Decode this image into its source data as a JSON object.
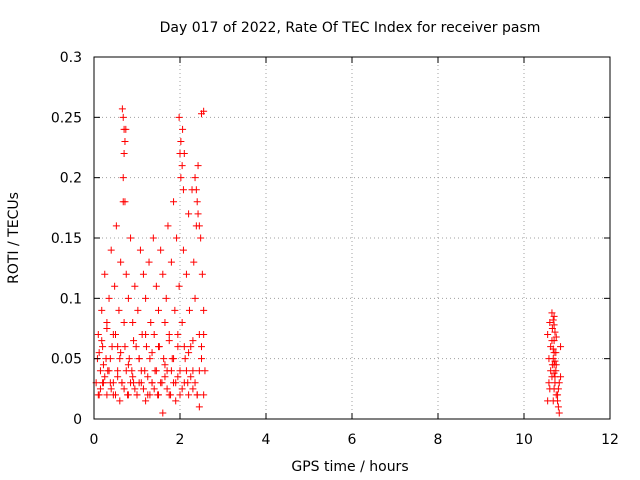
{
  "chart_data": {
    "type": "scatter",
    "title": "Day 017 of 2022, Rate Of TEC Index for receiver pasm",
    "xlabel": "GPS time / hours",
    "ylabel": "ROTI / TECUs",
    "xlim": [
      0,
      12
    ],
    "ylim": [
      0,
      0.3
    ],
    "x_ticks": [
      0,
      2,
      4,
      6,
      8,
      10,
      12
    ],
    "y_ticks": [
      0,
      0.05,
      0.1,
      0.15,
      0.2,
      0.25,
      0.3
    ],
    "x_tick_labels": [
      "0",
      "2",
      "4",
      "6",
      "8",
      "10",
      "12"
    ],
    "y_tick_labels": [
      "0",
      "0.05",
      "0.1",
      "0.15",
      "0.2",
      "0.25",
      "0.3"
    ],
    "grid": true,
    "marker": "+",
    "color": "#ff0000",
    "series": [
      {
        "name": "ROTI",
        "x": [
          0.05,
          0.08,
          0.1,
          0.12,
          0.15,
          0.18,
          0.2,
          0.22,
          0.25,
          0.28,
          0.3,
          0.32,
          0.35,
          0.38,
          0.4,
          0.42,
          0.45,
          0.48,
          0.5,
          0.52,
          0.55,
          0.58,
          0.6,
          0.62,
          0.65,
          0.68,
          0.7,
          0.72,
          0.75,
          0.78,
          0.8,
          0.82,
          0.85,
          0.88,
          0.9,
          0.92,
          0.95,
          0.98,
          1.0,
          1.02,
          1.05,
          1.08,
          1.1,
          1.12,
          1.15,
          1.18,
          1.2,
          1.22,
          1.25,
          1.28,
          1.3,
          1.32,
          1.35,
          1.38,
          1.4,
          1.42,
          1.45,
          1.48,
          1.5,
          1.52,
          1.55,
          1.58,
          1.6,
          1.62,
          1.65,
          1.68,
          1.7,
          1.72,
          1.75,
          1.78,
          1.8,
          1.82,
          1.85,
          1.88,
          1.9,
          1.92,
          1.95,
          1.98,
          2.0,
          2.02,
          2.05,
          2.08,
          2.1,
          2.12,
          2.15,
          2.18,
          2.2,
          2.22,
          2.25,
          2.28,
          2.3,
          2.32,
          2.35,
          2.38,
          2.4,
          2.42,
          2.45,
          2.48,
          2.5,
          2.52,
          2.55,
          2.58,
          0.1,
          0.15,
          0.2,
          0.25,
          0.3,
          0.35,
          0.4,
          0.45,
          0.5,
          0.55,
          0.6,
          0.65,
          0.7,
          0.75,
          0.8,
          0.85,
          0.9,
          0.95,
          1.0,
          1.05,
          1.1,
          1.15,
          1.2,
          1.25,
          1.3,
          1.35,
          1.4,
          1.45,
          1.5,
          1.55,
          1.6,
          1.65,
          1.7,
          1.75,
          1.8,
          1.85,
          1.9,
          1.95,
          2.0,
          2.05,
          2.1,
          2.15,
          2.2,
          2.25,
          2.3,
          2.35,
          2.4,
          2.45,
          2.5,
          2.55,
          0.68,
          0.7,
          0.72,
          0.7,
          0.68,
          0.72,
          0.66,
          0.74,
          2.02,
          2.05,
          2.08,
          2.0,
          1.98,
          2.06,
          2.35,
          2.38,
          2.4,
          2.42,
          2.45,
          2.5,
          2.55,
          0.12,
          0.18,
          0.22,
          0.3,
          0.38,
          0.45,
          0.55,
          0.62,
          0.8,
          0.92,
          1.05,
          1.2,
          1.35,
          1.5,
          1.65,
          1.75,
          1.85,
          1.95,
          2.1,
          2.2,
          2.3,
          2.45,
          2.55,
          10.55,
          10.58,
          10.6,
          10.62,
          10.65,
          10.68,
          10.7,
          10.72,
          10.75,
          10.78,
          10.8,
          10.82,
          10.85,
          10.55,
          10.6,
          10.65,
          10.7,
          10.75,
          10.8,
          10.85,
          10.58,
          10.62,
          10.66,
          10.7,
          10.74,
          10.78,
          10.82,
          10.65,
          10.68,
          10.7,
          10.72,
          10.75,
          10.68,
          10.7,
          10.72,
          10.66,
          10.74,
          10.7,
          10.68,
          10.72,
          10.7
        ],
        "y": [
          0.03,
          0.05,
          0.07,
          0.02,
          0.04,
          0.09,
          0.06,
          0.03,
          0.12,
          0.05,
          0.08,
          0.04,
          0.1,
          0.03,
          0.14,
          0.06,
          0.02,
          0.11,
          0.07,
          0.16,
          0.04,
          0.09,
          0.05,
          0.13,
          0.03,
          0.18,
          0.08,
          0.06,
          0.12,
          0.02,
          0.1,
          0.05,
          0.15,
          0.04,
          0.08,
          0.03,
          0.11,
          0.06,
          0.02,
          0.09,
          0.05,
          0.14,
          0.03,
          0.07,
          0.12,
          0.04,
          0.1,
          0.06,
          0.02,
          0.13,
          0.05,
          0.08,
          0.03,
          0.15,
          0.07,
          0.04,
          0.11,
          0.02,
          0.09,
          0.06,
          0.14,
          0.03,
          0.12,
          0.05,
          0.08,
          0.1,
          0.04,
          0.16,
          0.07,
          0.02,
          0.13,
          0.05,
          0.18,
          0.09,
          0.03,
          0.15,
          0.06,
          0.11,
          0.04,
          0.2,
          0.08,
          0.14,
          0.22,
          0.05,
          0.12,
          0.03,
          0.17,
          0.09,
          0.06,
          0.19,
          0.04,
          0.13,
          0.1,
          0.16,
          0.02,
          0.21,
          0.07,
          0.15,
          0.05,
          0.12,
          0.09,
          0.04,
          0.02,
          0.025,
          0.03,
          0.035,
          0.02,
          0.04,
          0.025,
          0.03,
          0.02,
          0.035,
          0.015,
          0.03,
          0.025,
          0.04,
          0.02,
          0.03,
          0.035,
          0.025,
          0.02,
          0.03,
          0.04,
          0.025,
          0.015,
          0.035,
          0.02,
          0.03,
          0.025,
          0.04,
          0.02,
          0.03,
          0.005,
          0.035,
          0.025,
          0.02,
          0.04,
          0.03,
          0.015,
          0.035,
          0.02,
          0.025,
          0.03,
          0.04,
          0.02,
          0.035,
          0.025,
          0.03,
          0.02,
          0.04,
          0.253,
          0.255,
          0.25,
          0.24,
          0.23,
          0.22,
          0.2,
          0.18,
          0.257,
          0.24,
          0.23,
          0.21,
          0.19,
          0.22,
          0.25,
          0.24,
          0.2,
          0.19,
          0.18,
          0.17,
          0.16,
          0.06,
          0.07,
          0.055,
          0.065,
          0.045,
          0.075,
          0.05,
          0.07,
          0.06,
          0.055,
          0.045,
          0.065,
          0.05,
          0.07,
          0.055,
          0.06,
          0.045,
          0.065,
          0.05,
          0.07,
          0.06,
          0.055,
          0.065,
          0.01,
          0.02,
          0.015,
          0.03,
          0.025,
          0.04,
          0.035,
          0.05,
          0.045,
          0.03,
          0.02,
          0.015,
          0.01,
          0.005,
          0.06,
          0.07,
          0.08,
          0.065,
          0.055,
          0.045,
          0.025,
          0.035,
          0.05,
          0.06,
          0.075,
          0.085,
          0.04,
          0.02,
          0.03,
          0.088,
          0.082,
          0.078,
          0.072,
          0.068,
          0.015,
          0.025,
          0.035,
          0.045,
          0.055,
          0.065,
          0.058,
          0.048,
          0.038
        ]
      }
    ]
  }
}
